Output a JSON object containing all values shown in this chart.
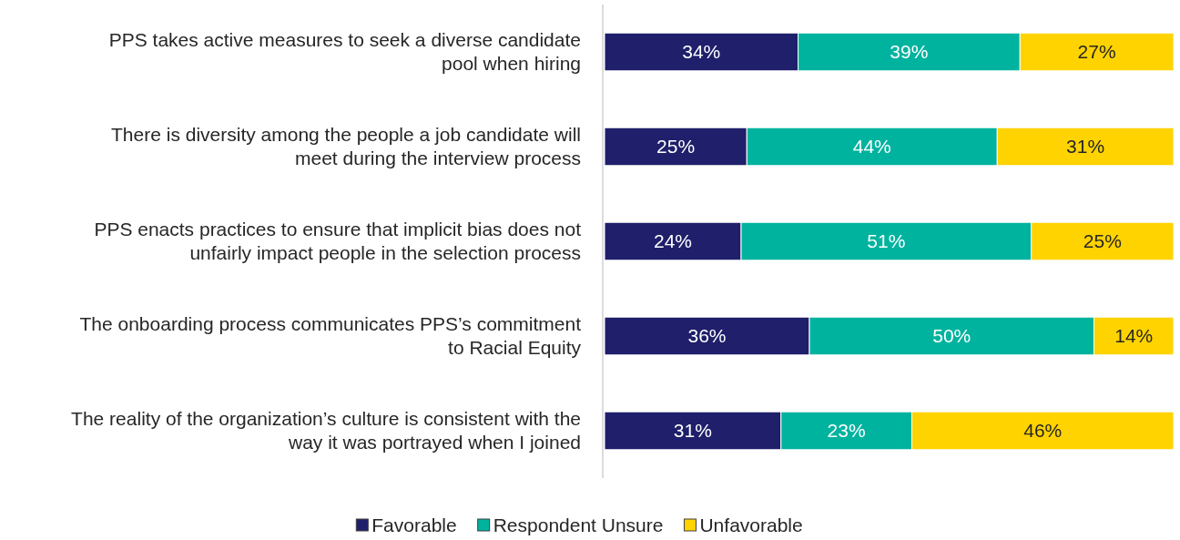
{
  "chart_data": {
    "type": "bar",
    "orientation": "horizontal",
    "stacked": true,
    "legend": "bottom",
    "categories": [
      "PPS takes active measures to seek a diverse candidate pool when hiring",
      "There is diversity among the people a job candidate will meet during the interview process",
      "PPS enacts practices to ensure that implicit bias does not unfairly impact people in the selection process",
      "The onboarding process communicates PPS’s commitment to Racial Equity",
      "The reality of the organization’s culture is consistent with the way it was portrayed when I joined"
    ],
    "series": [
      {
        "name": "Favorable",
        "color": "#1f1f6b",
        "values": [
          34,
          25,
          24,
          36,
          31
        ],
        "value_labels": [
          "34%",
          "25%",
          "24%",
          "36%",
          "31%"
        ]
      },
      {
        "name": "Respondent Unsure",
        "color": "#00b39f",
        "values": [
          39,
          44,
          51,
          50,
          23
        ],
        "value_labels": [
          "39%",
          "44%",
          "51%",
          "50%",
          "23%"
        ]
      },
      {
        "name": "Unfavorable",
        "color": "#ffd300",
        "values": [
          27,
          31,
          25,
          14,
          46
        ],
        "value_labels": [
          "27%",
          "31%",
          "25%",
          "14%",
          "46%"
        ]
      }
    ]
  }
}
